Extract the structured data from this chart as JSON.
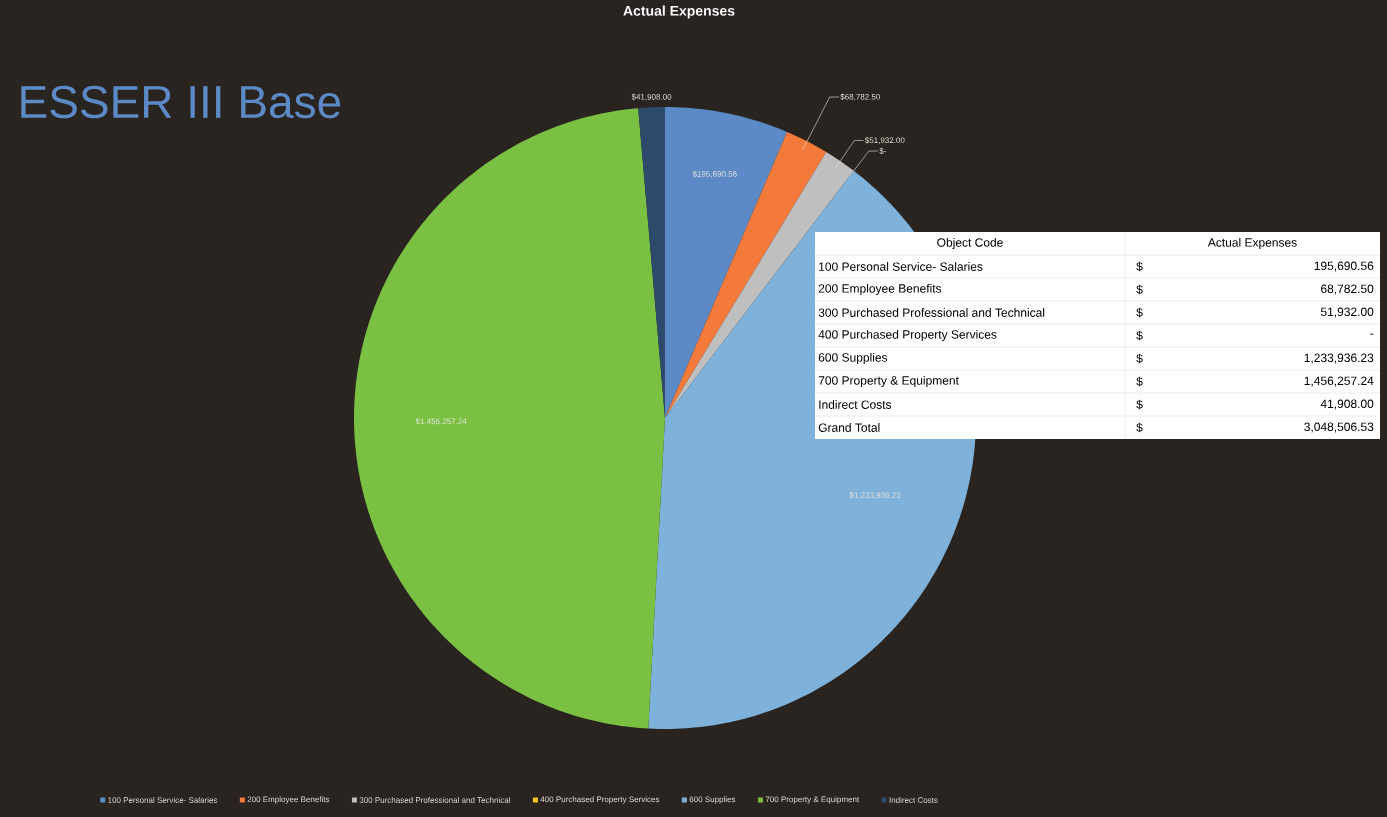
{
  "chart_data": {
    "type": "pie",
    "title": "Actual Expenses",
    "subtitle": "ESSER III Base",
    "categories": [
      "100 Personal Service- Salaries",
      "200 Employee Benefits",
      "300 Purchased Professional and Technical",
      "400 Purchased Property Services",
      "600 Supplies",
      "700 Property & Equipment",
      "Indirect Costs"
    ],
    "values": [
      195690.56,
      68782.5,
      51932.0,
      0,
      1233936.23,
      1456257.24,
      41908.0
    ],
    "colors": [
      "#5b8ac6",
      "#f47a3c",
      "#bfbfbf",
      "#f5c518",
      "#7fb2db",
      "#7ac143",
      "#2e4a6b"
    ],
    "value_labels": [
      "$195,690.56",
      "$68,782.50",
      "$51,932.00",
      "$-",
      "$1,233,936.23",
      "$1,456,257.24",
      "$41,908.00"
    ],
    "legend": "bottom",
    "annotations": [
      "Object Code",
      "Actual Expenses",
      "100 Personal Service- Salaries",
      "$",
      "195,690.56",
      "200 Employee Benefits",
      "$",
      "68,782.50",
      "300 Purchased Professional and Technical",
      "$",
      "51,932.00",
      "400 Purchased Property Services",
      "$",
      "-",
      "600 Supplies",
      "$",
      "1,233,936.23",
      "700 Property & Equipment",
      "$",
      "1,456,257.24",
      "Indirect Costs",
      "$",
      "41,908.00",
      "Grand Total",
      "$",
      "3,048,506.53"
    ]
  }
}
